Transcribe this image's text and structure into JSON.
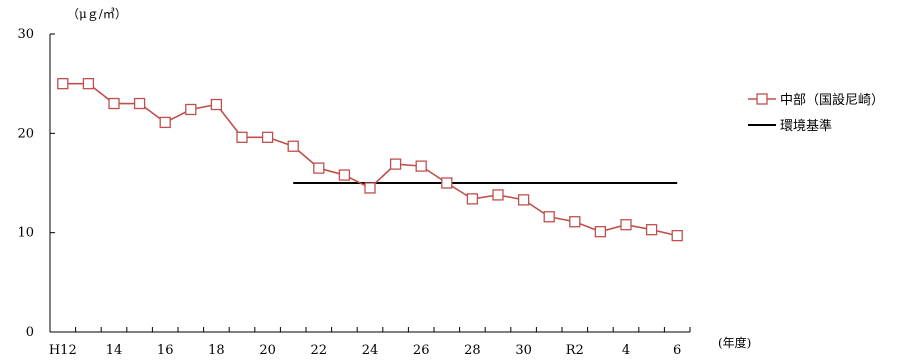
{
  "chart_data": {
    "type": "line",
    "ylabel": "（μｇ/㎥）",
    "xlabel": "(年度)",
    "ylim": [
      0,
      30
    ],
    "yticks": [
      0,
      10,
      20,
      30
    ],
    "x_labels": [
      "H12",
      "14",
      "16",
      "18",
      "20",
      "22",
      "24",
      "26",
      "28",
      "30",
      "R2",
      "4",
      "6"
    ],
    "categories": [
      "H12",
      "H13",
      "H14",
      "H15",
      "H16",
      "H17",
      "H18",
      "H19",
      "H20",
      "H21",
      "H22",
      "H23",
      "H24",
      "H25",
      "H26",
      "H27",
      "H28",
      "H29",
      "H30",
      "R1",
      "R2",
      "R3",
      "R4",
      "R5",
      "R6"
    ],
    "grid": false,
    "legend_position": "right",
    "series": [
      {
        "name": "中部（国設尼崎）",
        "color": "#c0504d",
        "marker": "open-square",
        "values": [
          25.0,
          25.0,
          23.0,
          23.0,
          21.1,
          22.4,
          22.9,
          19.6,
          19.6,
          18.7,
          16.5,
          15.8,
          14.5,
          16.9,
          16.7,
          15.0,
          13.4,
          13.8,
          13.3,
          11.6,
          11.1,
          10.1,
          10.8,
          10.3,
          9.7
        ]
      }
    ],
    "reference_line": {
      "name": "環境基準",
      "color": "#000000",
      "value": 15,
      "from": "H21",
      "to": "R6"
    }
  }
}
